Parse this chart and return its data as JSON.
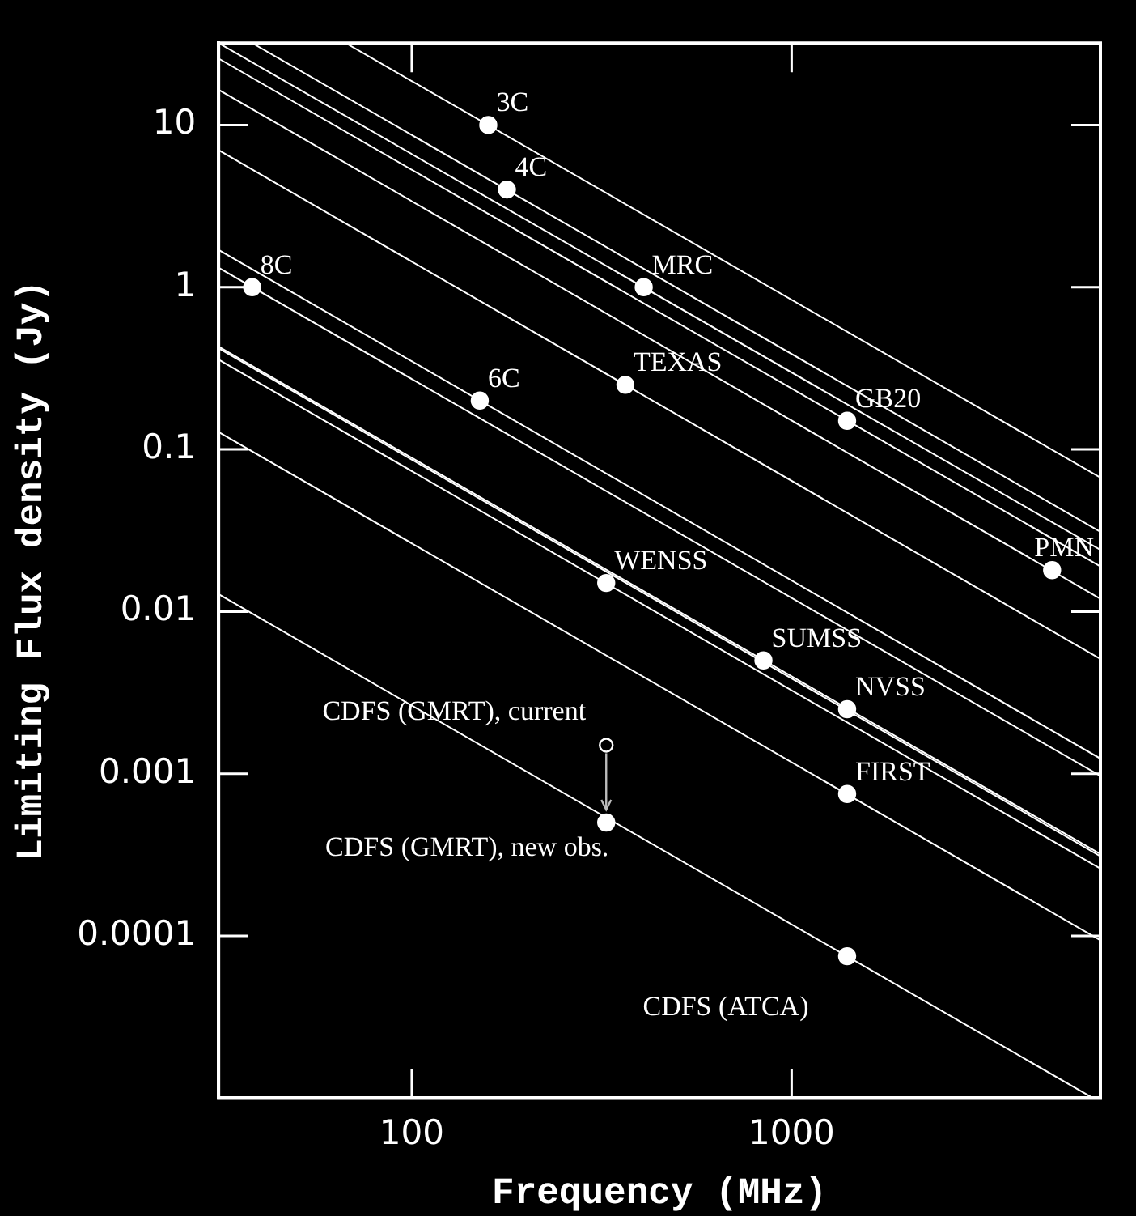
{
  "chart_data": {
    "type": "scatter",
    "xlabel": "Frequency (MHz)",
    "ylabel": "Limiting Flux density (Jy)",
    "log": "xy",
    "grid": false,
    "legend": false,
    "xlim": [
      31,
      6500
    ],
    "ylim": [
      1e-05,
      32
    ],
    "xticks": [
      100,
      1000
    ],
    "yticks": [
      0.0001,
      0.001,
      0.01,
      0.1,
      1,
      10
    ],
    "series": [
      {
        "type": "line",
        "color": "#ffffff",
        "x": [
          67,
          6500
        ],
        "values": [
          32,
          0.067
        ]
      },
      {
        "type": "line",
        "color": "#ffffff",
        "x": [
          38,
          6500
        ],
        "values": [
          32,
          0.031
        ]
      },
      {
        "type": "line",
        "color": "#ffffff",
        "x": [
          31,
          6500
        ],
        "values": [
          1.32,
          0.00097
        ]
      },
      {
        "type": "line",
        "color": "#ffffff",
        "x": [
          31,
          6500
        ],
        "values": [
          32,
          0.024
        ]
      },
      {
        "type": "line",
        "color": "#ffffff",
        "x": [
          31,
          6500
        ],
        "values": [
          1.7,
          0.00124
        ]
      },
      {
        "type": "line",
        "color": "#ffffff",
        "x": [
          31,
          6500
        ],
        "values": [
          7,
          0.0051
        ]
      },
      {
        "type": "line",
        "color": "#ffffff",
        "x": [
          31,
          6500
        ],
        "values": [
          25.7,
          0.019
        ]
      },
      {
        "type": "line",
        "color": "#ffffff",
        "x": [
          31,
          6500
        ],
        "values": [
          16.5,
          0.012
        ]
      },
      {
        "type": "line",
        "color": "#ffffff",
        "x": [
          31,
          6500
        ],
        "values": [
          0.358,
          0.00026
        ]
      },
      {
        "type": "line",
        "color": "#ffffff",
        "x": [
          31,
          6500
        ],
        "values": [
          0.43,
          0.00032
        ]
      },
      {
        "type": "line",
        "color": "#ffffff",
        "x": [
          31,
          6500
        ],
        "values": [
          0.42,
          0.00031
        ]
      },
      {
        "type": "line",
        "color": "#ffffff",
        "x": [
          31,
          6500
        ],
        "values": [
          0.128,
          9.4e-05
        ]
      },
      {
        "type": "line",
        "color": "#ffffff",
        "x": [
          31,
          6220
        ],
        "values": [
          0.0128,
          1e-05
        ]
      },
      {
        "type": "scatter",
        "marker": "circle",
        "color": "#ffffff",
        "x": [
          159,
          178,
          38,
          408,
          151,
          365,
          1400,
          4850,
          325,
          843,
          1400,
          1400,
          325,
          1400
        ],
        "values": [
          10,
          4,
          1,
          1,
          0.2,
          0.25,
          0.15,
          0.018,
          0.015,
          0.005,
          0.0025,
          0.00075,
          0.0005,
          7.5e-05
        ]
      },
      {
        "type": "scatter",
        "marker": "circle",
        "color": "#ffffff",
        "x": [
          325
        ],
        "values": [
          0.0015
        ]
      }
    ],
    "annotations": [
      {
        "text": "3C",
        "x": 159,
        "y": 10
      },
      {
        "text": "4C",
        "x": 178,
        "y": 4
      },
      {
        "text": "8C",
        "x": 38,
        "y": 1
      },
      {
        "text": "MRC",
        "x": 408,
        "y": 1
      },
      {
        "text": "6C",
        "x": 151,
        "y": 0.2
      },
      {
        "text": "TEXAS",
        "x": 365,
        "y": 0.25
      },
      {
        "text": "GB20",
        "x": 1400,
        "y": 0.15
      },
      {
        "text": "PMN",
        "x": 4850,
        "y": 0.018
      },
      {
        "text": "WENSS",
        "x": 325,
        "y": 0.015
      },
      {
        "text": "SUMSS",
        "x": 843,
        "y": 0.005
      },
      {
        "text": "NVSS",
        "x": 1400,
        "y": 0.0025
      },
      {
        "text": "FIRST",
        "x": 1400,
        "y": 0.00075
      },
      {
        "text": "CDFS (GMRT), current",
        "x": 325,
        "y": 0.0015
      },
      {
        "text": "CDFS (GMRT), new obs.",
        "x": 325,
        "y": 0.0005
      },
      {
        "text": "CDFS (ATCA)",
        "x": 1400,
        "y": 7.5e-05
      }
    ]
  }
}
